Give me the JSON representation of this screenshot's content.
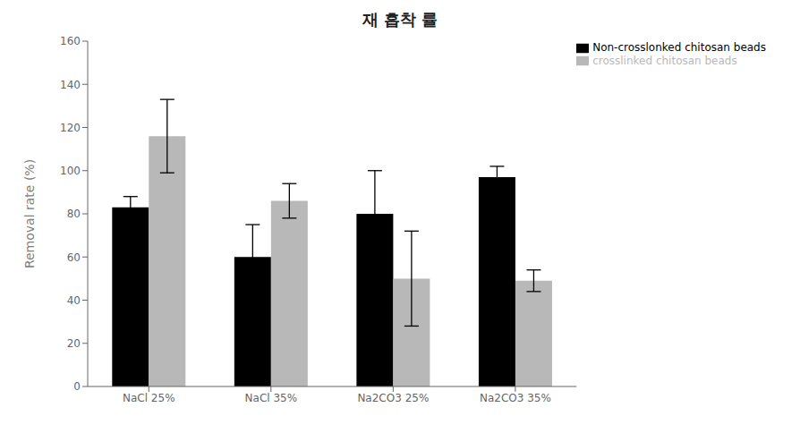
{
  "chart_data": {
    "type": "bar",
    "title": "재 흡착 률",
    "y_label": "Removal rate (%)",
    "categories": [
      "NaCl 25%",
      "NaCl 35%",
      "Na2CO3 25%",
      "Na2CO3 35%"
    ],
    "series": [
      {
        "name": "Non-crosslonked chitosan beads",
        "color": "#000000",
        "values": [
          83,
          60,
          80,
          97
        ],
        "errors": [
          5,
          15,
          20,
          5
        ]
      },
      {
        "name": "crosslinked chitosan beads",
        "color": "#b8b8b8",
        "values": [
          116,
          86,
          50,
          49
        ],
        "errors": [
          17,
          8,
          22,
          5
        ]
      }
    ],
    "ylim": [
      0,
      160
    ],
    "yticks": [
      0,
      20,
      40,
      60,
      80,
      100,
      120,
      140,
      160
    ],
    "grid": false,
    "legend": "upper right"
  }
}
